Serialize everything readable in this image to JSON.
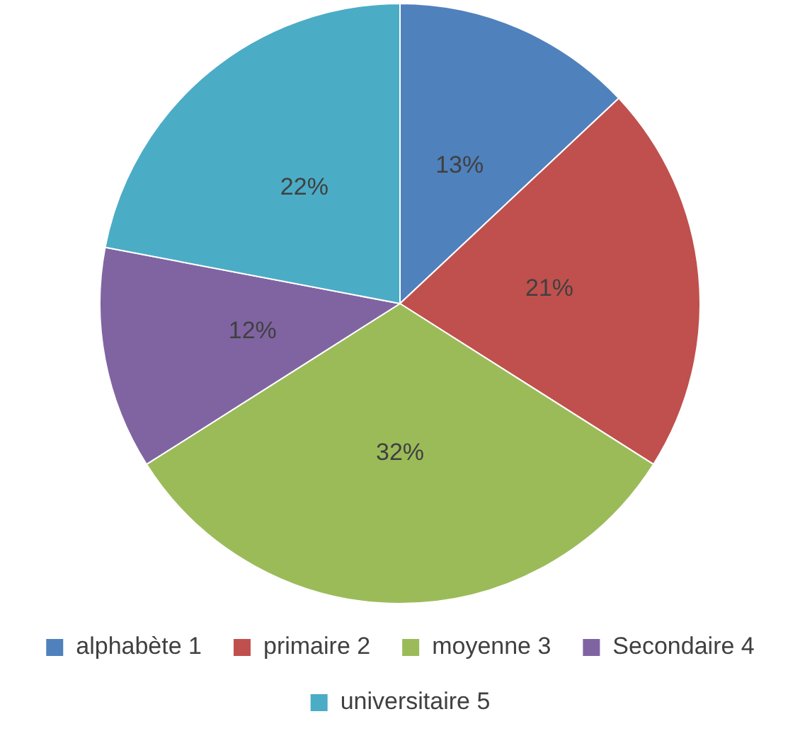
{
  "chart_data": {
    "type": "pie",
    "categories": [
      "alphabète 1",
      "primaire 2",
      "moyenne 3",
      "Secondaire 4",
      "universitaire 5"
    ],
    "values": [
      13,
      21,
      32,
      12,
      22
    ],
    "value_labels": [
      "13%",
      "21%",
      "32%",
      "12%",
      "22%"
    ],
    "colors": [
      "#4f81bd",
      "#c0504d",
      "#9bbb59",
      "#8064a2",
      "#4bacc6"
    ],
    "legend": "bottom"
  }
}
